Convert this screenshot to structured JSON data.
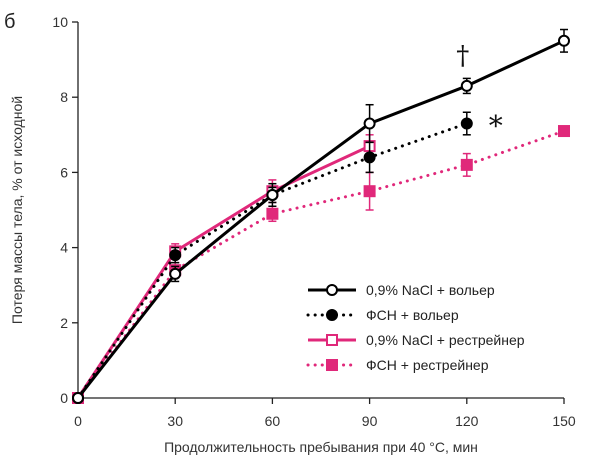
{
  "panel_label": "б",
  "chart_data": {
    "type": "line",
    "title": "",
    "xlabel": "Продолжительность пребывания при 40 °C, мин",
    "ylabel": "Потеря массы тела, % от исходной",
    "xlim": [
      0,
      150
    ],
    "ylim": [
      0,
      10
    ],
    "x_ticks": [
      0,
      30,
      60,
      90,
      120,
      150
    ],
    "y_ticks": [
      0,
      2,
      4,
      6,
      8,
      10
    ],
    "grid": false,
    "legend_position": "bottom-right",
    "series": [
      {
        "name": "0,9% NaCl + вольер",
        "color": "#000000",
        "line": "solid",
        "marker": "open-circle",
        "x": [
          0,
          30,
          60,
          90,
          120,
          150
        ],
        "y": [
          0,
          3.3,
          5.4,
          7.3,
          8.3,
          9.5
        ],
        "err": [
          0.1,
          0.2,
          0.2,
          0.5,
          0.2,
          0.3
        ]
      },
      {
        "name": "ФСН + вольер",
        "color": "#000000",
        "line": "dotted",
        "marker": "filled-circle",
        "x": [
          0,
          30,
          60,
          90,
          120
        ],
        "y": [
          0,
          3.8,
          5.4,
          6.4,
          7.3
        ],
        "err": [
          0.1,
          0.2,
          0.3,
          0.4,
          0.3
        ]
      },
      {
        "name": "0,9% NaCl + рестрейнер",
        "color": "#e0287a",
        "line": "solid",
        "marker": "open-square",
        "x": [
          0,
          30,
          60,
          90
        ],
        "y": [
          0,
          3.9,
          5.5,
          6.7
        ],
        "err": [
          0.1,
          0.2,
          0.3,
          0.3
        ]
      },
      {
        "name": "ФСН + рестрейнер",
        "color": "#e0287a",
        "line": "dotted",
        "marker": "filled-square",
        "x": [
          0,
          30,
          60,
          90,
          120,
          150
        ],
        "y": [
          0,
          3.4,
          4.9,
          5.5,
          6.2,
          7.1
        ],
        "err": [
          0.1,
          0.2,
          0.2,
          0.5,
          0.3,
          0.1
        ]
      }
    ],
    "annotations": [
      {
        "text": "†",
        "series": 0,
        "x": 120
      },
      {
        "text": "*",
        "series": 1,
        "x": 120
      }
    ]
  }
}
